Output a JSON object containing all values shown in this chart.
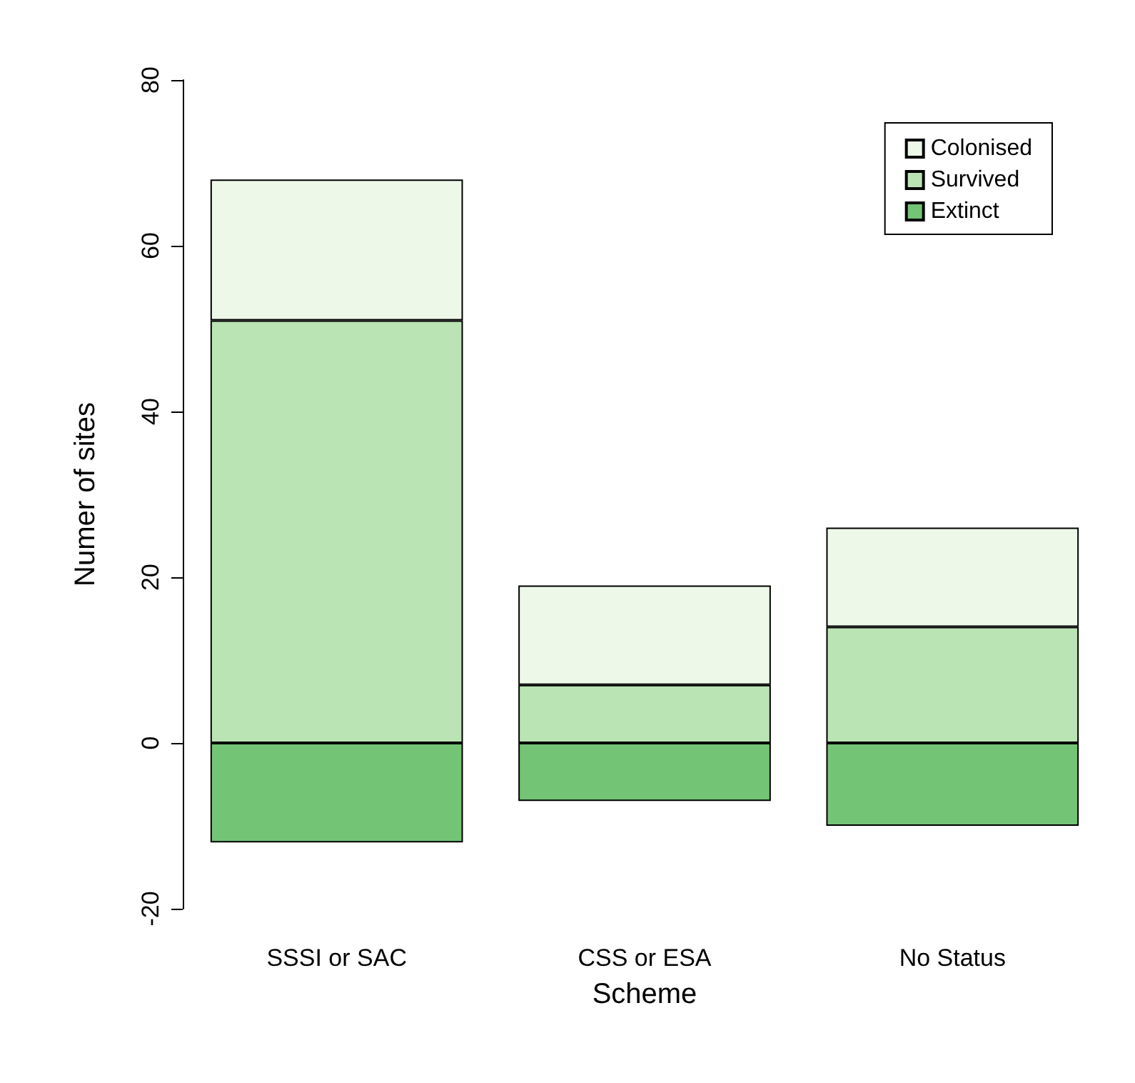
{
  "chart_data": {
    "type": "bar",
    "xlabel": "Scheme",
    "ylabel": "Numer of sites",
    "categories": [
      "SSSI or SAC",
      "CSS or ESA",
      "No Status"
    ],
    "stacked": true,
    "series": [
      {
        "name": "Extinct",
        "color": "#74c476",
        "values": [
          -12,
          -7,
          -10
        ]
      },
      {
        "name": "Survived",
        "color": "#bae4b3",
        "values": [
          51,
          7,
          14
        ]
      },
      {
        "name": "Colonised",
        "color": "#edf8e9",
        "values": [
          17,
          12,
          12
        ]
      }
    ],
    "ylim": [
      -20,
      80
    ],
    "yticks": [
      -20,
      0,
      20,
      40,
      60,
      80
    ],
    "grid": false,
    "legend": "top right"
  }
}
